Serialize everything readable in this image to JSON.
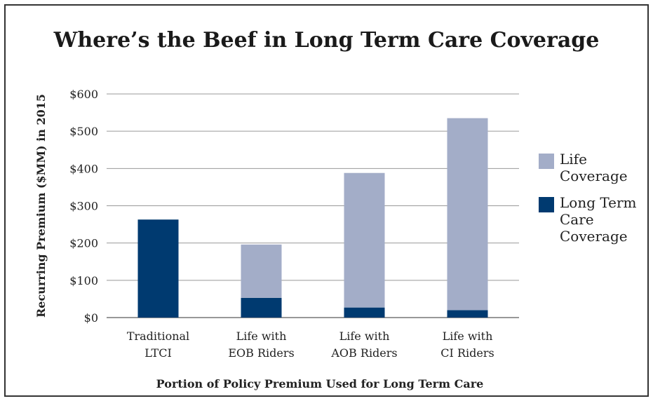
{
  "chart_data": {
    "type": "bar",
    "stacked": true,
    "title": "Where’s the Beef in Long Term Care Coverage",
    "xlabel": "Portion of Policy Premium Used for Long Term Care",
    "ylabel": "Recurring Premium ($MM) in 2015",
    "categories": [
      [
        "Traditional",
        "LTCI"
      ],
      [
        "Life with",
        "EOB Riders"
      ],
      [
        "Life with",
        "AOB Riders"
      ],
      [
        "Life with",
        "CI Riders"
      ]
    ],
    "series": [
      {
        "name": "Long Term Care Coverage",
        "color": "#003a70",
        "values": [
          263,
          53,
          27,
          20
        ]
      },
      {
        "name": "Life Coverage",
        "color": "#a3adc8",
        "values": [
          0,
          143,
          361,
          515
        ]
      }
    ],
    "ylim": [
      0,
      600
    ],
    "yticks": [
      0,
      100,
      200,
      300,
      400,
      500,
      600
    ],
    "ytick_labels": [
      "$0",
      "$100",
      "$200",
      "$300",
      "$400",
      "$500",
      "$600"
    ],
    "grid": true,
    "legend": {
      "position": "right",
      "items": [
        {
          "label": "Life Coverage",
          "color": "#a3adc8"
        },
        {
          "label": "Long Term Care Coverage",
          "color": "#003a70"
        }
      ]
    }
  }
}
